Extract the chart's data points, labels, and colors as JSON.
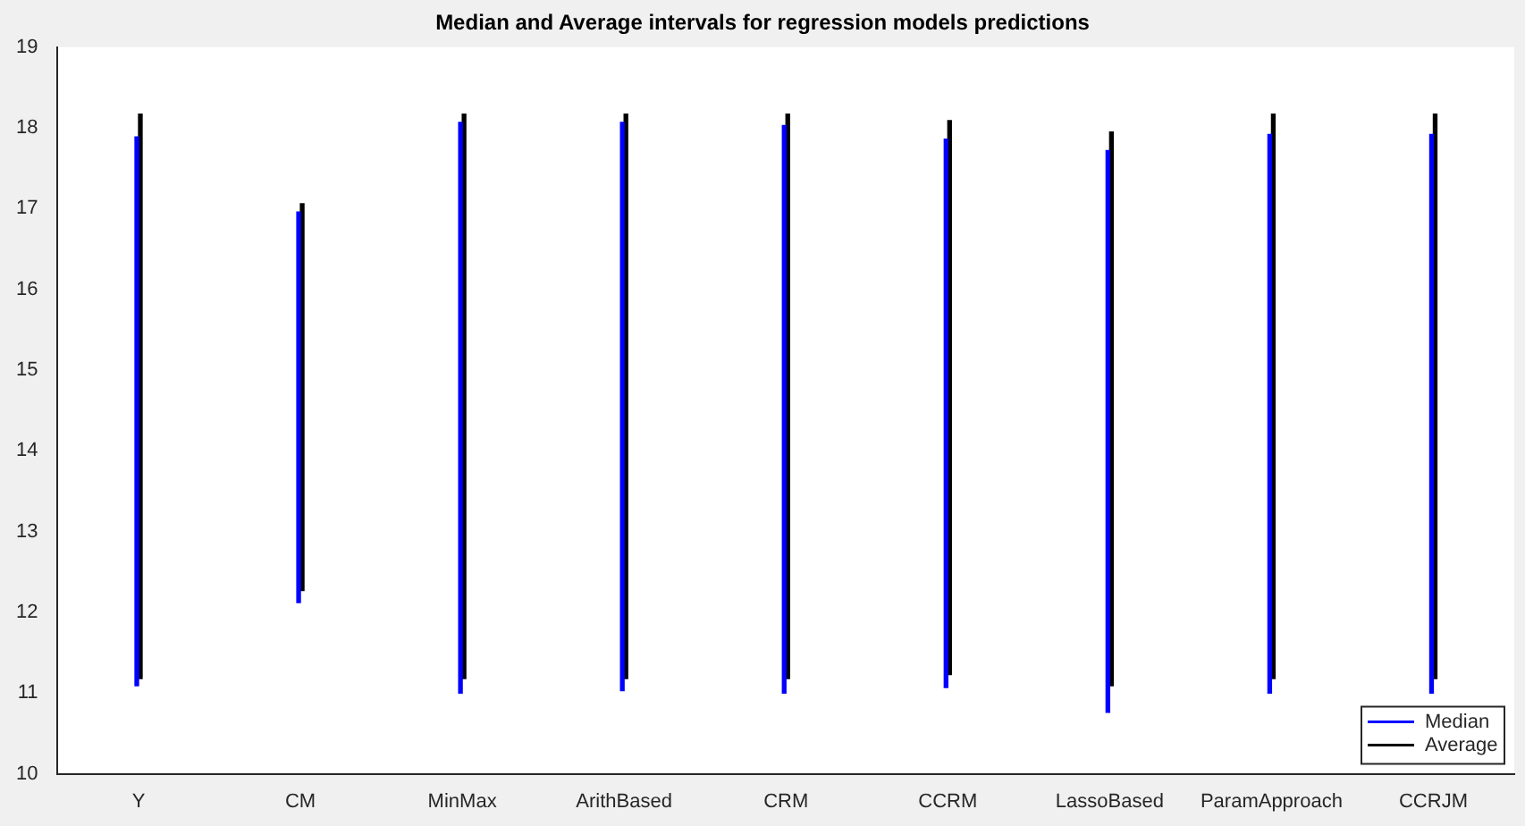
{
  "chart_data": {
    "type": "bar",
    "title": "Median and Average intervals for regression models predictions",
    "categories": [
      "Y",
      "CM",
      "MinMax",
      "ArithBased",
      "CRM",
      "CCRM",
      "LassoBased",
      "ParamApproach",
      "CCRJM"
    ],
    "series": [
      {
        "name": "Median",
        "color": "#0000ff",
        "base": [
          11.09,
          12.12,
          11.0,
          11.03,
          11.0,
          11.07,
          10.76,
          11.0,
          11.0
        ],
        "values": [
          6.8,
          4.84,
          7.07,
          7.04,
          7.03,
          6.79,
          6.96,
          6.92,
          6.92
        ]
      },
      {
        "name": "Average",
        "color": "#000000",
        "base": [
          11.18,
          12.27,
          11.18,
          11.18,
          11.18,
          11.23,
          11.09,
          11.18,
          11.18
        ],
        "values": [
          6.99,
          4.79,
          6.99,
          6.99,
          6.99,
          6.86,
          6.86,
          6.99,
          6.99
        ]
      }
    ],
    "ylim": [
      10,
      19
    ],
    "yticks": [
      10,
      11,
      12,
      13,
      14,
      15,
      16,
      17,
      18,
      19
    ],
    "grid": false,
    "legend": "bottom right"
  }
}
